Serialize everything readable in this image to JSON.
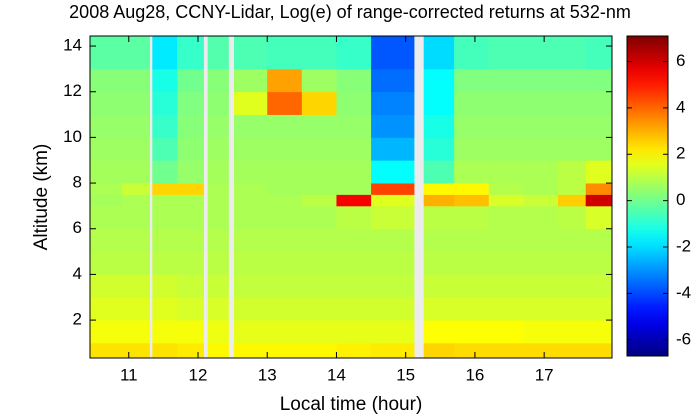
{
  "chart_data": {
    "type": "heatmap",
    "title": "2008 Aug28, CCNY-Lidar, Log(e) of range-corrected returns at 532-nm",
    "x_label": "Local time (hour)",
    "y_label": "Altitude (km)",
    "colormap": "jet",
    "gap_color": "#ececec",
    "xlim": [
      10.44,
      17.98
    ],
    "ylim": [
      0.34,
      14.44
    ],
    "xticks": [
      11,
      12,
      13,
      14,
      15,
      16,
      17
    ],
    "yticks": [
      2,
      4,
      6,
      8,
      10,
      12,
      14
    ],
    "clim": [
      -6.7,
      7.1
    ],
    "colorbar_ticks": [
      -6,
      -4,
      -2,
      0,
      2,
      4,
      6
    ],
    "x_edges": [
      10.44,
      10.9,
      11.3,
      11.34,
      11.7,
      12.08,
      12.14,
      12.44,
      12.52,
      13,
      13.5,
      14,
      14.5,
      15.12,
      15.26,
      15.7,
      16.2,
      16.7,
      17.2,
      17.6,
      17.98
    ],
    "y_edges": [
      0.34,
      1,
      2,
      3,
      4,
      5,
      6,
      7,
      7.5,
      8,
      9,
      10,
      11,
      12,
      13,
      14.44
    ],
    "values": [
      [
        2.3,
        2.3,
        null,
        2.3,
        2.2,
        null,
        2.0,
        null,
        2.0,
        2.0,
        2.0,
        2.1,
        2.2,
        null,
        2.5,
        2.4,
        2.4,
        2.4,
        2.4,
        2.4
      ],
      [
        1.8,
        1.8,
        null,
        1.8,
        1.8,
        null,
        1.7,
        null,
        1.6,
        1.6,
        1.6,
        1.6,
        1.6,
        null,
        1.9,
        1.9,
        1.9,
        1.8,
        1.8,
        1.8
      ],
      [
        1.5,
        1.5,
        null,
        1.5,
        1.4,
        null,
        1.4,
        null,
        1.3,
        1.3,
        1.3,
        1.3,
        1.3,
        null,
        1.4,
        1.4,
        1.4,
        1.4,
        1.4,
        1.4
      ],
      [
        1.3,
        1.3,
        null,
        1.3,
        1.2,
        null,
        1.2,
        null,
        1.1,
        1.1,
        1.1,
        1.1,
        1.1,
        null,
        1.2,
        1.2,
        1.2,
        1.2,
        1.2,
        1.2
      ],
      [
        1.0,
        1.0,
        null,
        1.0,
        1.0,
        null,
        1.0,
        null,
        1.0,
        1.0,
        1.0,
        1.0,
        1.0,
        null,
        1.0,
        1.0,
        1.0,
        1.0,
        1.0,
        1.0
      ],
      [
        0.9,
        0.9,
        null,
        0.9,
        0.9,
        null,
        0.9,
        null,
        0.9,
        0.9,
        0.9,
        0.9,
        0.9,
        null,
        0.9,
        0.9,
        0.9,
        0.9,
        0.9,
        0.9
      ],
      [
        0.8,
        0.8,
        null,
        0.8,
        0.8,
        null,
        0.8,
        null,
        0.8,
        0.8,
        0.8,
        1.0,
        1.2,
        null,
        1.0,
        1.0,
        0.9,
        0.9,
        1.0,
        1.4
      ],
      [
        0.7,
        0.8,
        null,
        0.8,
        0.8,
        null,
        0.8,
        null,
        0.8,
        0.8,
        1.0,
        5.5,
        1.5,
        null,
        3.0,
        2.8,
        1.4,
        1.2,
        2.6,
        6.0
      ],
      [
        0.8,
        1.2,
        null,
        2.5,
        2.5,
        null,
        0.8,
        null,
        0.8,
        0.7,
        0.7,
        0.7,
        4.5,
        null,
        2.0,
        2.0,
        0.9,
        0.8,
        1.0,
        3.5
      ],
      [
        0.7,
        0.7,
        null,
        0.0,
        0.5,
        null,
        0.7,
        null,
        0.7,
        0.7,
        0.7,
        0.7,
        -1.5,
        null,
        -0.5,
        0.8,
        0.8,
        0.8,
        1.0,
        1.5
      ],
      [
        0.6,
        0.6,
        null,
        -0.5,
        0.4,
        null,
        0.6,
        null,
        0.6,
        0.6,
        0.6,
        0.6,
        -2.5,
        null,
        -1.0,
        0.6,
        0.6,
        0.6,
        0.6,
        0.6
      ],
      [
        0.5,
        0.5,
        null,
        -0.8,
        0.3,
        null,
        0.5,
        null,
        0.5,
        0.5,
        0.5,
        0.5,
        -3.0,
        null,
        -1.2,
        0.5,
        0.5,
        0.5,
        0.5,
        0.5
      ],
      [
        0.4,
        0.4,
        null,
        -1.0,
        0.2,
        null,
        0.4,
        null,
        1.5,
        4.0,
        2.5,
        0.4,
        -3.2,
        null,
        -1.5,
        0.4,
        0.4,
        0.4,
        0.4,
        0.4
      ],
      [
        0.3,
        0.3,
        null,
        -1.2,
        0.0,
        null,
        0.3,
        null,
        0.6,
        3.2,
        0.6,
        0.3,
        -3.5,
        null,
        -1.5,
        0.2,
        0.2,
        0.2,
        0.2,
        0.2
      ],
      [
        -0.3,
        -0.3,
        null,
        -1.8,
        -0.8,
        null,
        -0.4,
        null,
        -0.5,
        -0.6,
        -0.6,
        -0.8,
        -3.8,
        null,
        -2.0,
        -0.6,
        -0.5,
        -0.5,
        -0.5,
        -0.6
      ]
    ]
  }
}
